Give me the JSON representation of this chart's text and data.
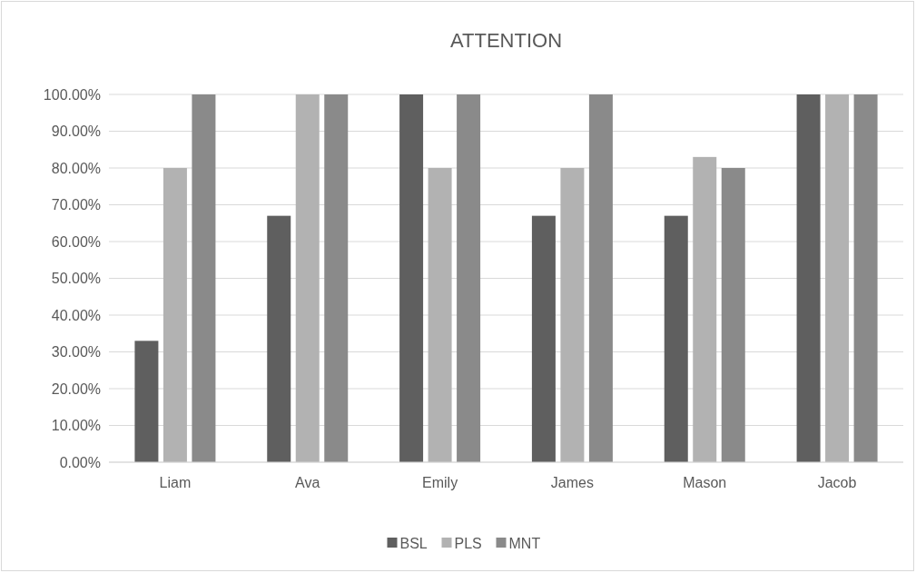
{
  "chart_data": {
    "type": "bar",
    "title": "ATTENTION",
    "categories": [
      "Liam",
      "Ava",
      "Emily",
      "James",
      "Mason",
      "Jacob"
    ],
    "series": [
      {
        "name": "BSL",
        "color": "#5f5f5f",
        "values": [
          33,
          67,
          100,
          67,
          67,
          100
        ]
      },
      {
        "name": "PLS",
        "color": "#b2b2b2",
        "values": [
          80,
          100,
          80,
          80,
          83,
          100
        ]
      },
      {
        "name": "MNT",
        "color": "#8a8a8a",
        "values": [
          100,
          100,
          100,
          100,
          80,
          100
        ]
      }
    ],
    "ylim": [
      0,
      100
    ],
    "yticks": [
      {
        "value": 0,
        "label": "0.00%"
      },
      {
        "value": 10,
        "label": "10.00%"
      },
      {
        "value": 20,
        "label": "20.00%"
      },
      {
        "value": 30,
        "label": "30.00%"
      },
      {
        "value": 40,
        "label": "40.00%"
      },
      {
        "value": 50,
        "label": "50.00%"
      },
      {
        "value": 60,
        "label": "60.00%"
      },
      {
        "value": 70,
        "label": "70.00%"
      },
      {
        "value": 80,
        "label": "80.00%"
      },
      {
        "value": 90,
        "label": "90.00%"
      },
      {
        "value": 100,
        "label": "100.00%"
      }
    ],
    "grid": "y",
    "legend": "bottom"
  }
}
